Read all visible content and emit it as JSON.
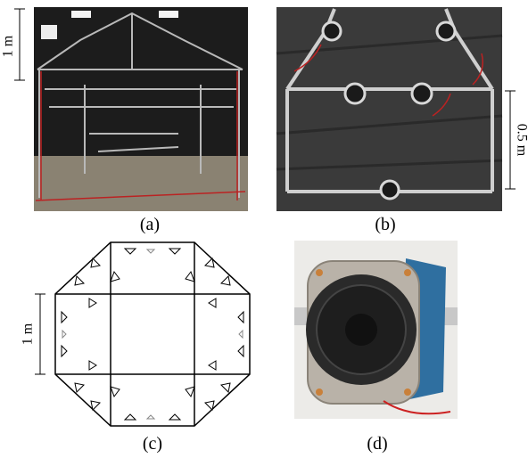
{
  "panels": [
    {
      "label": "(a)",
      "scale": "1 m"
    },
    {
      "label": "(b)",
      "scale": "0.5 m"
    },
    {
      "label": "(c)",
      "scale": "1 m"
    },
    {
      "label": "(d)"
    }
  ]
}
